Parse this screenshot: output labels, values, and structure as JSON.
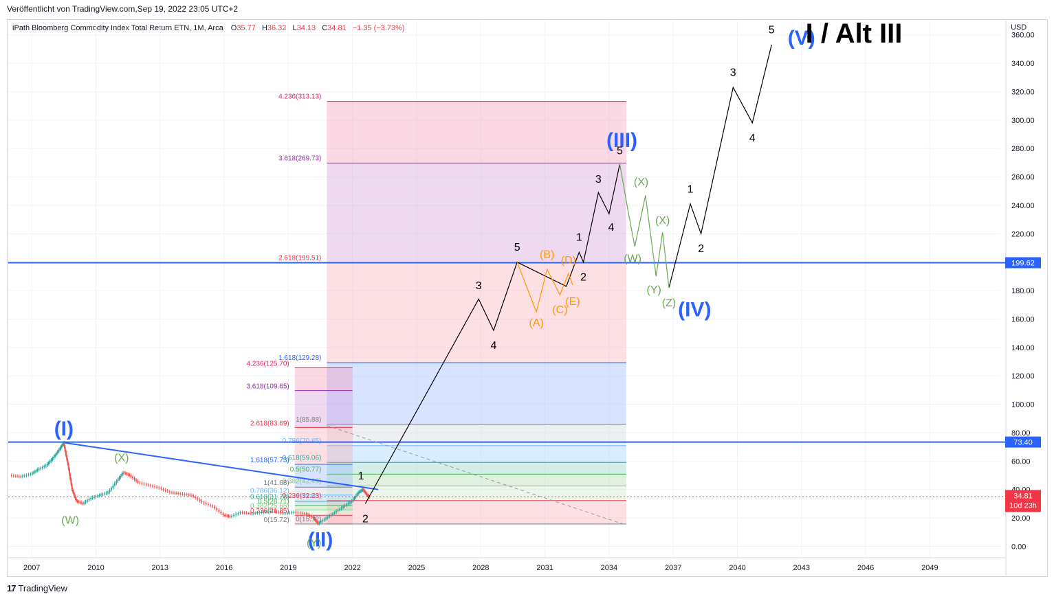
{
  "header": {
    "published": "Veröffentlicht von TradingView.com,Sep 19, 2022 23:05 UTC+2",
    "symbol": "iPath Bloomberg Commodity Index Total Return ETN, 1M, Arca",
    "o_label": "O",
    "o_value": "35.77",
    "h_label": "H",
    "h_value": "36.32",
    "l_label": "L",
    "l_value": "34.13",
    "c_label": "C",
    "c_value": "34.81",
    "change": "−1.35 (−3.73%)",
    "currency": "USD",
    "brand": "TradingView"
  },
  "colors": {
    "blue": "#2962ff",
    "green": "#6aa84f",
    "orange": "#ff9800",
    "black": "#000000",
    "red": "#f23645",
    "price_bg": "#f23645"
  },
  "chart_data": {
    "type": "candlestick",
    "title": "I / Alt III",
    "x_ticks": [
      "2007",
      "2010",
      "2013",
      "2016",
      "2019",
      "2022",
      "2025",
      "2028",
      "2031",
      "2034",
      "2037",
      "2040",
      "2043",
      "2046",
      "2049"
    ],
    "y_ticks": [
      "0.00",
      "20.00",
      "40.00",
      "60.00",
      "80.00",
      "100.00",
      "120.00",
      "140.00",
      "160.00",
      "180.00",
      "200.00",
      "220.00",
      "240.00",
      "260.00",
      "280.00",
      "300.00",
      "320.00",
      "340.00",
      "360.00"
    ],
    "ylim": [
      -8,
      370
    ],
    "xlim": [
      2005.9,
      2052.3
    ],
    "current_price": {
      "value": 34.81,
      "label": "34.81",
      "countdown": "10d 23h"
    },
    "horizontal_lines": [
      {
        "value": 199.62,
        "label": "199.62"
      },
      {
        "value": 73.4,
        "label": "73.40"
      }
    ],
    "price_history": [
      [
        2006.0,
        50
      ],
      [
        2006.5,
        49
      ],
      [
        2007.0,
        51
      ],
      [
        2007.3,
        54
      ],
      [
        2007.7,
        57
      ],
      [
        2008.0,
        62
      ],
      [
        2008.3,
        68
      ],
      [
        2008.5,
        73
      ],
      [
        2008.7,
        58
      ],
      [
        2008.9,
        40
      ],
      [
        2009.1,
        32
      ],
      [
        2009.4,
        30
      ],
      [
        2009.8,
        34
      ],
      [
        2010.2,
        36
      ],
      [
        2010.6,
        38
      ],
      [
        2011.0,
        46
      ],
      [
        2011.3,
        52
      ],
      [
        2011.6,
        50
      ],
      [
        2012.0,
        45
      ],
      [
        2012.5,
        43
      ],
      [
        2013.0,
        41
      ],
      [
        2013.5,
        38
      ],
      [
        2014.0,
        37
      ],
      [
        2014.5,
        36
      ],
      [
        2015.0,
        31
      ],
      [
        2015.5,
        28
      ],
      [
        2016.0,
        22
      ],
      [
        2016.3,
        21
      ],
      [
        2016.8,
        24
      ],
      [
        2017.3,
        23
      ],
      [
        2017.8,
        24
      ],
      [
        2018.3,
        25
      ],
      [
        2018.8,
        23
      ],
      [
        2019.3,
        24
      ],
      [
        2019.8,
        23
      ],
      [
        2020.2,
        20
      ],
      [
        2020.4,
        16
      ],
      [
        2020.8,
        20
      ],
      [
        2021.2,
        24
      ],
      [
        2021.6,
        28
      ],
      [
        2022.0,
        32
      ],
      [
        2022.3,
        38
      ],
      [
        2022.5,
        40
      ],
      [
        2022.7,
        36
      ],
      [
        2022.8,
        34.81
      ]
    ],
    "fib_small": [
      {
        "label": "4.236(125.70)",
        "value": 125.7,
        "color": "#e91e63"
      },
      {
        "label": "3.618(109.65)",
        "value": 109.65,
        "color": "#9c27b0"
      },
      {
        "label": "2.618(83.69)",
        "value": 83.69,
        "color": "#f23645"
      },
      {
        "label": "1.618(57.73)",
        "value": 57.73,
        "color": "#2962ff"
      },
      {
        "label": "1(41.68)",
        "value": 41.68,
        "color": "#787b86"
      },
      {
        "label": "0.786(36.12)",
        "value": 36.12,
        "color": "#64b5f6"
      },
      {
        "label": "0.618(31.78)",
        "value": 31.78,
        "color": "#26a69a"
      },
      {
        "label": "0.5(28.71)",
        "value": 28.71,
        "color": "#4caf50"
      },
      {
        "label": "0.382(25.65)",
        "value": 25.65,
        "color": "#81c784"
      },
      {
        "label": "0.236(21.85)",
        "value": 21.85,
        "color": "#f23645"
      },
      {
        "label": "0(15.72)",
        "value": 15.72,
        "color": "#787b86"
      }
    ],
    "fib_large": [
      {
        "label": "4.236(313.13)",
        "value": 313.13,
        "color": "#e91e63"
      },
      {
        "label": "3.618(269.73)",
        "value": 269.73,
        "color": "#9c27b0"
      },
      {
        "label": "2.618(199.51)",
        "value": 199.51,
        "color": "#f23645"
      },
      {
        "label": "1.618(129.28)",
        "value": 129.28,
        "color": "#2962ff"
      },
      {
        "label": "1(85.88)",
        "value": 85.88,
        "color": "#787b86"
      },
      {
        "label": "0.786(70.85)",
        "value": 70.85,
        "color": "#64b5f6"
      },
      {
        "label": "0.618(59.06)",
        "value": 59.06,
        "color": "#26a69a"
      },
      {
        "label": "0.5(50.77)",
        "value": 50.77,
        "color": "#4caf50"
      },
      {
        "label": "0.382(42.49)",
        "value": 42.49,
        "color": "#81c784"
      },
      {
        "label": "0.236(32.23)",
        "value": 32.23,
        "color": "#f23645"
      },
      {
        "label": "0(15.72)",
        "value": 15.72,
        "color": "#787b86"
      }
    ],
    "black_path": [
      [
        2022.6,
        30
      ],
      [
        2027.9,
        174
      ],
      [
        2028.6,
        152
      ],
      [
        2029.7,
        200
      ],
      [
        2032.0,
        183
      ],
      [
        2032.6,
        207
      ],
      [
        2032.8,
        200
      ],
      [
        2033.5,
        249
      ],
      [
        2034.0,
        234
      ],
      [
        2034.5,
        269
      ]
    ],
    "black_path2": [
      [
        2036.8,
        182
      ],
      [
        2037.8,
        241
      ],
      [
        2038.3,
        220
      ],
      [
        2039.8,
        323
      ],
      [
        2040.7,
        298
      ],
      [
        2041.6,
        353
      ]
    ],
    "orange_path": [
      [
        2029.7,
        200
      ],
      [
        2030.6,
        165
      ],
      [
        2031.1,
        195
      ],
      [
        2031.7,
        177
      ],
      [
        2032.1,
        192
      ],
      [
        2032.3,
        184
      ]
    ],
    "green_path": [
      [
        2034.5,
        269
      ],
      [
        2034.9,
        235
      ],
      [
        2035.2,
        211
      ],
      [
        2035.7,
        247
      ],
      [
        2036.2,
        190
      ],
      [
        2036.5,
        221
      ],
      [
        2036.8,
        182
      ]
    ],
    "trendline": [
      [
        2008.5,
        73
      ],
      [
        2023.2,
        40
      ]
    ],
    "dashed_line": [
      [
        2020.8,
        85
      ],
      [
        2034.8,
        15
      ]
    ],
    "wave_labels": [
      {
        "text": "(I)",
        "x": 2008.5,
        "y": 78,
        "color": "#2962ff",
        "size": "big"
      },
      {
        "text": "(II)",
        "x": 2020.5,
        "y": 0,
        "color": "#2962ff",
        "size": "big"
      },
      {
        "text": "(III)",
        "x": 2034.6,
        "y": 281,
        "color": "#2962ff",
        "size": "big"
      },
      {
        "text": "(IV)",
        "x": 2038.0,
        "y": 162,
        "color": "#2962ff",
        "size": "big"
      },
      {
        "text": "(V)",
        "x": 2043.0,
        "y": 353,
        "color": "#2962ff",
        "size": "big"
      },
      {
        "text": "(W)",
        "x": 2008.8,
        "y": 16,
        "color": "#6aa84f",
        "size": "mid"
      },
      {
        "text": "(X)",
        "x": 2011.2,
        "y": 60,
        "color": "#6aa84f",
        "size": "mid"
      },
      {
        "text": "(Y)",
        "x": 2020.2,
        "y": 0,
        "color": "#6aa84f",
        "size": "mid"
      },
      {
        "text": "(X)",
        "x": 2035.5,
        "y": 254,
        "color": "#6aa84f",
        "size": "mid"
      },
      {
        "text": "(W)",
        "x": 2035.1,
        "y": 200,
        "color": "#6aa84f",
        "size": "mid"
      },
      {
        "text": "(X)",
        "x": 2036.5,
        "y": 227,
        "color": "#6aa84f",
        "size": "mid"
      },
      {
        "text": "(Y)",
        "x": 2036.1,
        "y": 178,
        "color": "#6aa84f",
        "size": "mid"
      },
      {
        "text": "(Z)",
        "x": 2036.8,
        "y": 169,
        "color": "#6aa84f",
        "size": "mid"
      },
      {
        "text": "(A)",
        "x": 2030.6,
        "y": 155,
        "color": "#ff9800",
        "size": "mid"
      },
      {
        "text": "(B)",
        "x": 2031.1,
        "y": 203,
        "color": "#ff9800",
        "size": "mid"
      },
      {
        "text": "(C)",
        "x": 2031.7,
        "y": 164,
        "color": "#ff9800",
        "size": "mid"
      },
      {
        "text": "(D)",
        "x": 2032.1,
        "y": 199,
        "color": "#ff9800",
        "size": "mid"
      },
      {
        "text": "(E)",
        "x": 2032.3,
        "y": 170,
        "color": "#ff9800",
        "size": "mid"
      },
      {
        "text": "1",
        "x": 2022.4,
        "y": 47,
        "color": "#000",
        "size": "mid"
      },
      {
        "text": "2",
        "x": 2022.6,
        "y": 17,
        "color": "#000",
        "size": "mid"
      },
      {
        "text": "3",
        "x": 2027.9,
        "y": 181,
        "color": "#000",
        "size": "mid"
      },
      {
        "text": "4",
        "x": 2028.6,
        "y": 139,
        "color": "#000",
        "size": "mid"
      },
      {
        "text": "5",
        "x": 2029.7,
        "y": 208,
        "color": "#000",
        "size": "mid"
      },
      {
        "text": "1",
        "x": 2032.6,
        "y": 215,
        "color": "#000",
        "size": "mid"
      },
      {
        "text": "2",
        "x": 2032.8,
        "y": 187,
        "color": "#000",
        "size": "mid"
      },
      {
        "text": "3",
        "x": 2033.5,
        "y": 256,
        "color": "#000",
        "size": "mid"
      },
      {
        "text": "4",
        "x": 2034.1,
        "y": 222,
        "color": "#000",
        "size": "mid"
      },
      {
        "text": "5",
        "x": 2034.5,
        "y": 276,
        "color": "#000",
        "size": "mid"
      },
      {
        "text": "1",
        "x": 2037.8,
        "y": 249,
        "color": "#000",
        "size": "mid"
      },
      {
        "text": "2",
        "x": 2038.3,
        "y": 207,
        "color": "#000",
        "size": "mid"
      },
      {
        "text": "3",
        "x": 2039.8,
        "y": 331,
        "color": "#000",
        "size": "mid"
      },
      {
        "text": "4",
        "x": 2040.7,
        "y": 285,
        "color": "#000",
        "size": "mid"
      },
      {
        "text": "5",
        "x": 2041.6,
        "y": 361,
        "color": "#000",
        "size": "mid"
      }
    ]
  }
}
